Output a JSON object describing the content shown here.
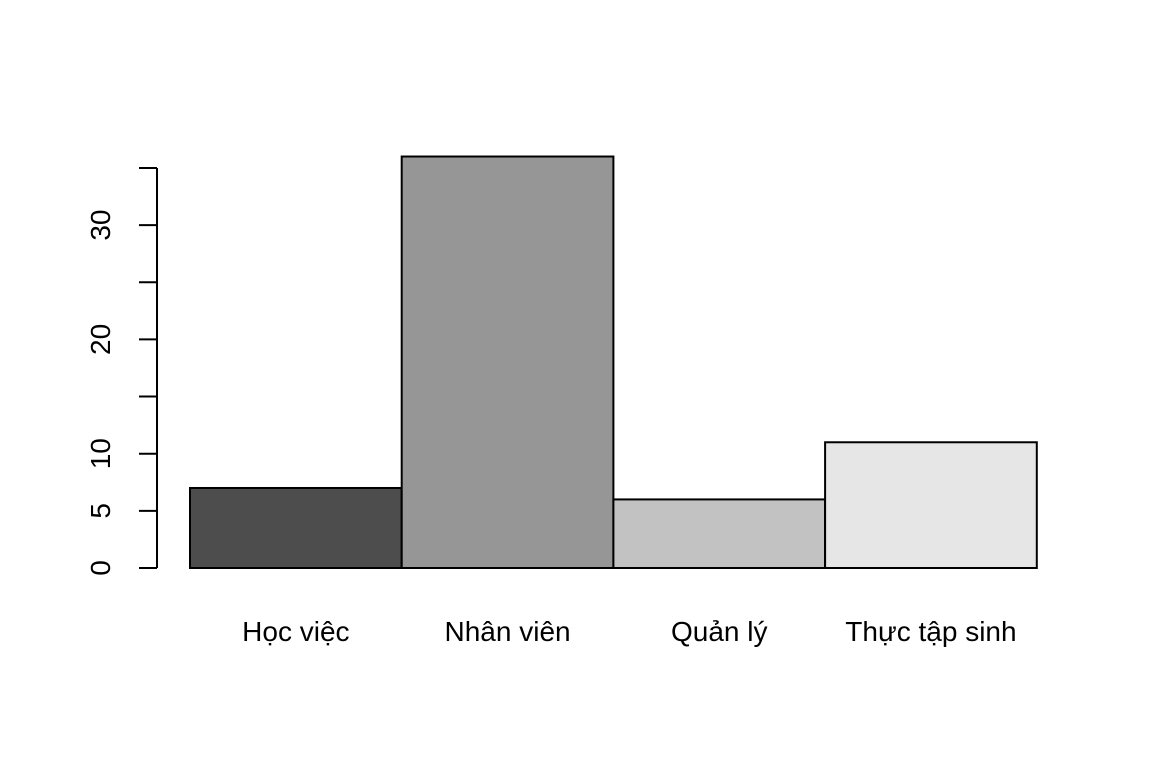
{
  "chart_data": {
    "type": "bar",
    "categories": [
      "Học việc",
      "Nhân viên",
      "Quản lý",
      "Thực tập sinh"
    ],
    "values": [
      7,
      36,
      6,
      11
    ],
    "colors": [
      "#4d4d4d",
      "#969696",
      "#c2c2c2",
      "#e6e6e6"
    ],
    "title": "",
    "xlabel": "",
    "ylabel": "",
    "ylim": [
      0,
      35
    ],
    "yticks": [
      0,
      5,
      10,
      15,
      20,
      25,
      30,
      35
    ],
    "ytick_labels": [
      "0",
      "5",
      "10",
      "",
      "20",
      "",
      "30",
      ""
    ],
    "grid": false,
    "bar_border_color": "#000000"
  }
}
